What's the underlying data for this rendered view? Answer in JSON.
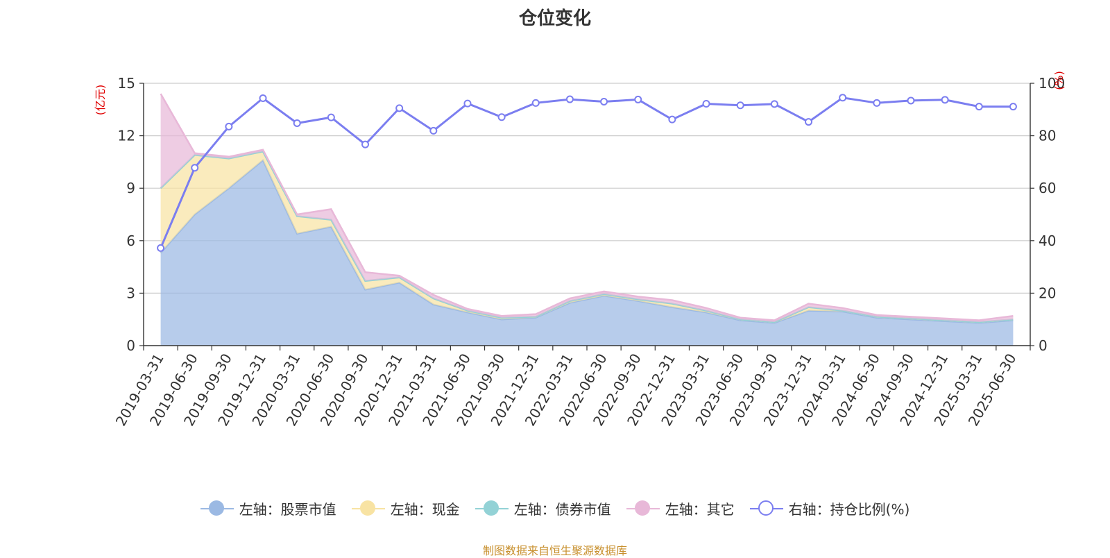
{
  "title": "仓位变化",
  "source": "制图数据来自恒生聚源数据库",
  "chart_data": {
    "type": "area",
    "categories": [
      "2019-03-31",
      "2019-06-30",
      "2019-09-30",
      "2019-12-31",
      "2020-03-31",
      "2020-06-30",
      "2020-09-30",
      "2020-12-31",
      "2021-03-31",
      "2021-06-30",
      "2021-09-30",
      "2021-12-31",
      "2022-03-31",
      "2022-06-30",
      "2022-09-30",
      "2022-12-31",
      "2023-03-31",
      "2023-06-30",
      "2023-09-30",
      "2023-12-31",
      "2024-03-31",
      "2024-06-30",
      "2024-09-30",
      "2024-12-31",
      "2025-03-31",
      "2025-06-30"
    ],
    "left_axis": {
      "unit": "(亿元)",
      "ylim": [
        0,
        15
      ],
      "ticks": [
        0,
        3,
        6,
        9,
        12,
        15
      ]
    },
    "right_axis": {
      "unit": "(%)",
      "ylim": [
        0,
        100
      ],
      "ticks": [
        0,
        20,
        40,
        60,
        80,
        100
      ]
    },
    "series": [
      {
        "name": "左轴：股票市值",
        "axis": "left",
        "kind": "stacked-area",
        "color": "#9bb9e3",
        "values": [
          5.3,
          7.5,
          9.0,
          10.6,
          6.4,
          6.8,
          3.2,
          3.6,
          2.35,
          1.9,
          1.5,
          1.6,
          2.45,
          2.85,
          2.55,
          2.2,
          1.9,
          1.45,
          1.3,
          2.0,
          1.95,
          1.6,
          1.5,
          1.4,
          1.3,
          1.45
        ]
      },
      {
        "name": "左轴：现金",
        "axis": "left",
        "kind": "stacked-area",
        "color": "#f8e3a3",
        "values": [
          3.7,
          3.4,
          1.7,
          0.5,
          1.0,
          0.4,
          0.5,
          0.3,
          0.35,
          0.1,
          0.1,
          0.05,
          0.1,
          0.1,
          0.1,
          0.2,
          0.1,
          0.05,
          0.05,
          0.2,
          0.05,
          0.05,
          0.05,
          0.05,
          0.05,
          0.05
        ]
      },
      {
        "name": "左轴：债券市值",
        "axis": "left",
        "kind": "stacked-area",
        "color": "#93d2d6",
        "values": [
          0,
          0,
          0,
          0,
          0,
          0,
          0,
          0,
          0,
          0,
          0,
          0,
          0,
          0,
          0,
          0,
          0,
          0,
          0,
          0,
          0,
          0,
          0,
          0,
          0,
          0
        ]
      },
      {
        "name": "左轴：其它",
        "axis": "left",
        "kind": "stacked-area",
        "color": "#e8b8d8",
        "values": [
          5.4,
          0.1,
          0.1,
          0.1,
          0.1,
          0.6,
          0.5,
          0.1,
          0.2,
          0.1,
          0.1,
          0.15,
          0.15,
          0.15,
          0.15,
          0.2,
          0.15,
          0.1,
          0.1,
          0.2,
          0.15,
          0.1,
          0.1,
          0.1,
          0.1,
          0.2
        ]
      },
      {
        "name": "右轴：持仓比例(%)",
        "axis": "right",
        "kind": "line",
        "color": "#7b7ef0",
        "values": [
          37.2,
          67.8,
          83.5,
          94.3,
          84.8,
          87.0,
          76.7,
          90.5,
          81.9,
          92.3,
          87.1,
          92.5,
          93.9,
          93.0,
          93.8,
          86.2,
          92.2,
          91.6,
          92.1,
          85.3,
          94.5,
          92.5,
          93.4,
          93.7,
          91.1,
          91.1
        ]
      }
    ],
    "grid": true,
    "legend_position": "bottom"
  }
}
